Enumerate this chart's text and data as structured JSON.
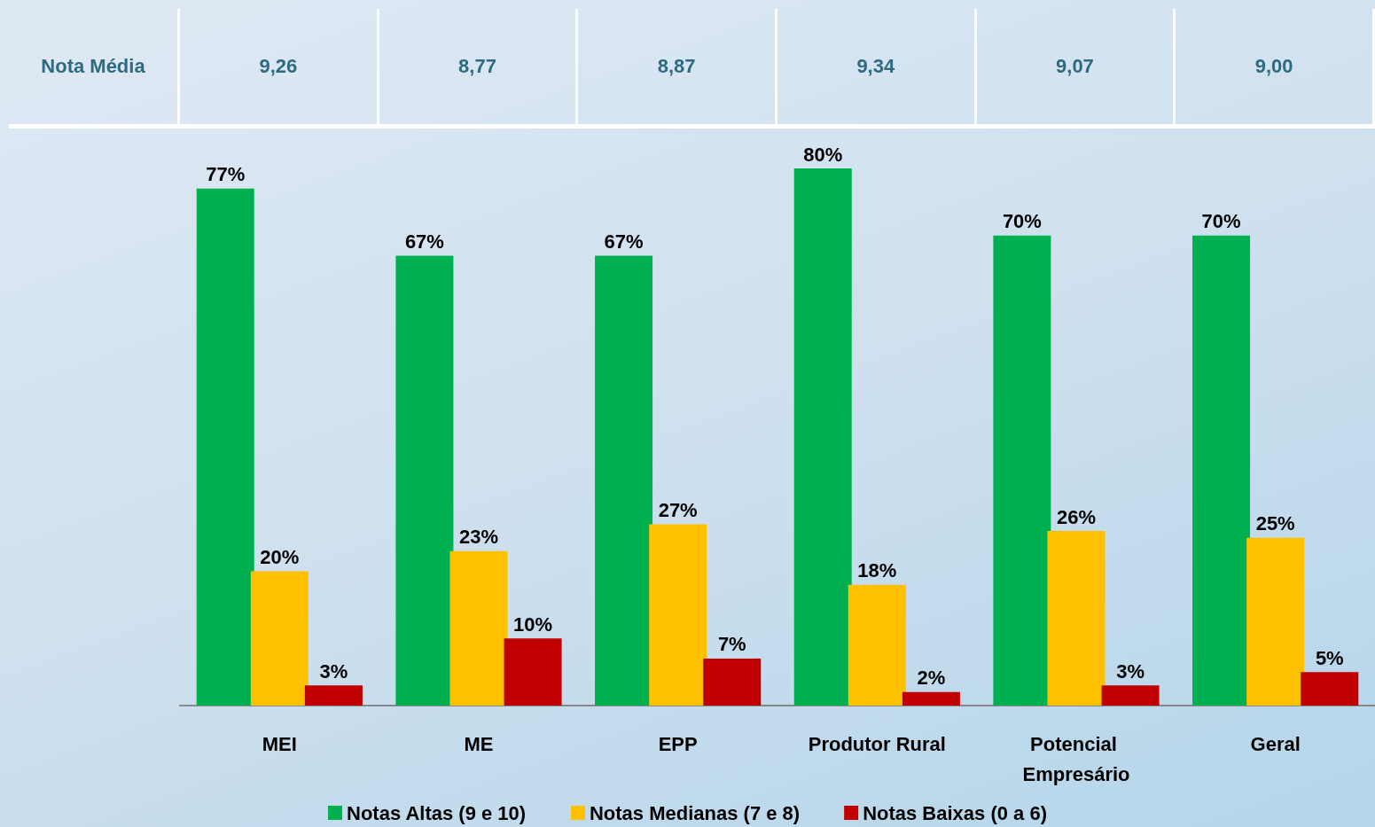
{
  "chart_data": {
    "type": "bar",
    "categories": [
      "MEI",
      "ME",
      "EPP",
      "Produtor Rural",
      "Potencial Empresário",
      "Geral"
    ],
    "series": [
      {
        "name": "Notas Altas (9 e 10)",
        "color": "#00b050",
        "values": [
          77,
          67,
          67,
          80,
          70,
          70
        ],
        "value_labels": [
          "77%",
          "67%",
          "67%",
          "80%",
          "70%",
          "70%"
        ]
      },
      {
        "name": "Notas Medianas (7 e 8)",
        "color": "#ffc000",
        "values": [
          20,
          23,
          27,
          18,
          26,
          25
        ],
        "value_labels": [
          "20%",
          "23%",
          "27%",
          "18%",
          "26%",
          "25%"
        ]
      },
      {
        "name": "Notas Baixas (0 a 6)",
        "color": "#c00000",
        "values": [
          3,
          10,
          7,
          2,
          3,
          5
        ],
        "value_labels": [
          "3%",
          "10%",
          "7%",
          "2%",
          "3%",
          "5%"
        ]
      }
    ],
    "annotations": [
      "Nota Média",
      "9,26",
      "8,77",
      "8,87",
      "9,34",
      "9,07",
      "9,00"
    ],
    "legend": "bottom"
  }
}
